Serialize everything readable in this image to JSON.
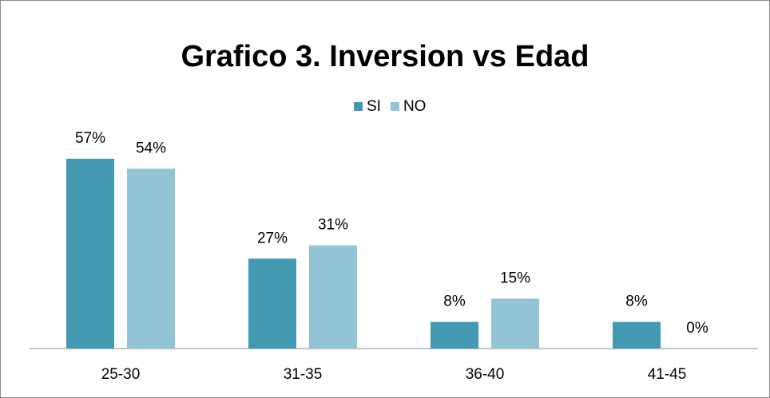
{
  "chart_data": {
    "type": "bar",
    "title": "Grafico 3. Inversion vs Edad",
    "categories": [
      "25-30",
      "31-35",
      "36-40",
      "41-45"
    ],
    "series": [
      {
        "name": "SI",
        "color": "#4399b1",
        "values": [
          57,
          27,
          8,
          8
        ],
        "value_labels": [
          "57%",
          "27%",
          "8%",
          "8%"
        ]
      },
      {
        "name": "NO",
        "color": "#93c4d6",
        "values": [
          54,
          31,
          15,
          0
        ],
        "value_labels": [
          "54%",
          "31%",
          "15%",
          "0%"
        ]
      }
    ],
    "legend": "top"
  }
}
